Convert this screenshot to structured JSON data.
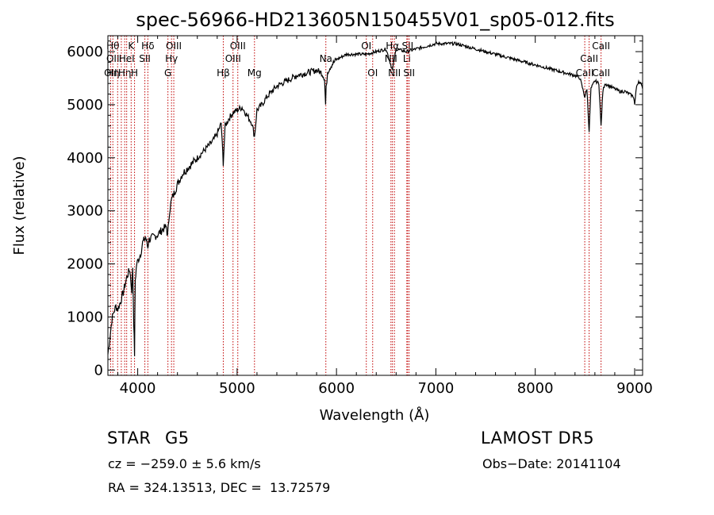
{
  "chart_data": {
    "type": "line",
    "title": "spec-56966-HD213605N150455V01_sp05-012.fits",
    "xlabel": "Wavelength (Å)",
    "ylabel": "Flux (relative)",
    "xlim": [
      3700,
      9080
    ],
    "ylim": [
      -100,
      6300
    ],
    "xticks": [
      4000,
      5000,
      6000,
      7000,
      8000,
      9000
    ],
    "yticks": [
      0,
      1000,
      2000,
      3000,
      4000,
      5000,
      6000
    ],
    "line_color": "#000000",
    "marker_color": "#c00000",
    "series": [
      {
        "x": [
          3700,
          3720,
          3740,
          3760,
          3780,
          3800,
          3830,
          3860,
          3890,
          3920,
          3940,
          3950,
          3960,
          3968,
          3975,
          3990,
          4010,
          4030,
          4050,
          4080,
          4102,
          4110,
          4150,
          4200,
          4250,
          4290,
          4300,
          4320,
          4340,
          4360,
          4400,
          4450,
          4500,
          4550,
          4600,
          4650,
          4700,
          4750,
          4800,
          4840,
          4861,
          4880,
          4920,
          4960,
          5000,
          5050,
          5100,
          5150,
          5175,
          5200,
          5250,
          5300,
          5350,
          5400,
          5500,
          5600,
          5700,
          5800,
          5850,
          5880,
          5890,
          5896,
          5910,
          5950,
          6000,
          6100,
          6200,
          6300,
          6400,
          6500,
          6563,
          6600,
          6700,
          6800,
          6900,
          7000,
          7100,
          7200,
          7300,
          7400,
          7500,
          7600,
          7700,
          7800,
          7900,
          8000,
          8100,
          8200,
          8300,
          8400,
          8450,
          8498,
          8520,
          8542,
          8560,
          8600,
          8640,
          8662,
          8680,
          8700,
          8750,
          8800,
          8850,
          8900,
          8950,
          8990,
          9000,
          9020,
          9040,
          9060,
          9080
        ],
        "y": [
          300,
          600,
          950,
          1100,
          1200,
          1150,
          1300,
          1500,
          1750,
          1900,
          1500,
          1950,
          900,
          300,
          1700,
          2000,
          2100,
          2200,
          2400,
          2500,
          2300,
          2450,
          2500,
          2550,
          2650,
          2700,
          2500,
          3000,
          3200,
          3300,
          3500,
          3700,
          3800,
          3900,
          4000,
          4100,
          4200,
          4300,
          4450,
          4650,
          3900,
          4600,
          4750,
          4850,
          4900,
          4950,
          4800,
          4650,
          4400,
          4900,
          5000,
          5150,
          5250,
          5350,
          5450,
          5550,
          5600,
          5650,
          5600,
          5500,
          5000,
          5300,
          5620,
          5750,
          5850,
          5950,
          5950,
          5950,
          6000,
          6050,
          5650,
          6050,
          6000,
          6050,
          6100,
          6150,
          6150,
          6150,
          6100,
          6050,
          6000,
          5950,
          5900,
          5850,
          5800,
          5750,
          5700,
          5650,
          5600,
          5550,
          5500,
          5150,
          5300,
          4500,
          5300,
          5450,
          5400,
          4600,
          5250,
          5400,
          5350,
          5300,
          5250,
          5250,
          5200,
          5150,
          5000,
          5350,
          5450,
          5400,
          5300
        ]
      }
    ],
    "line_markers": [
      {
        "wavelength": 3727,
        "labels": [
          "OII"
        ],
        "row": [
          3
        ]
      },
      {
        "wavelength": 3750,
        "labels": [
          "Hθ",
          "OII",
          "Hη"
        ],
        "row": [
          1,
          2,
          3
        ]
      },
      {
        "wavelength": 3798,
        "labels": [],
        "row": []
      },
      {
        "wavelength": 3835,
        "labels": [],
        "row": []
      },
      {
        "wavelength": 3869,
        "labels": [
          "Hη"
        ],
        "row": [
          3
        ]
      },
      {
        "wavelength": 3889,
        "labels": [
          "HeI"
        ],
        "row": [
          2
        ]
      },
      {
        "wavelength": 3934,
        "labels": [
          "K"
        ],
        "row": [
          1
        ]
      },
      {
        "wavelength": 3968,
        "labels": [
          "H"
        ],
        "row": [
          3
        ]
      },
      {
        "wavelength": 4072,
        "labels": [
          "SII"
        ],
        "row": [
          2
        ]
      },
      {
        "wavelength": 4102,
        "labels": [
          "Hδ"
        ],
        "row": [
          1
        ]
      },
      {
        "wavelength": 4304,
        "labels": [
          "G"
        ],
        "row": [
          3
        ]
      },
      {
        "wavelength": 4340,
        "labels": [
          "Hγ"
        ],
        "row": [
          2
        ]
      },
      {
        "wavelength": 4363,
        "labels": [
          "OIII"
        ],
        "row": [
          1
        ]
      },
      {
        "wavelength": 4861,
        "labels": [
          "Hβ"
        ],
        "row": [
          3
        ]
      },
      {
        "wavelength": 4959,
        "labels": [
          "OIII"
        ],
        "row": [
          2
        ]
      },
      {
        "wavelength": 5007,
        "labels": [
          "OIII"
        ],
        "row": [
          1
        ]
      },
      {
        "wavelength": 5175,
        "labels": [
          "Mg"
        ],
        "row": [
          3
        ]
      },
      {
        "wavelength": 5893,
        "labels": [
          "Na"
        ],
        "row": [
          2
        ]
      },
      {
        "wavelength": 6300,
        "labels": [
          "OI"
        ],
        "row": [
          1
        ]
      },
      {
        "wavelength": 6364,
        "labels": [
          "OI"
        ],
        "row": [
          3
        ]
      },
      {
        "wavelength": 6548,
        "labels": [
          "NII"
        ],
        "row": [
          2
        ]
      },
      {
        "wavelength": 6563,
        "labels": [
          "Hα"
        ],
        "row": [
          1
        ]
      },
      {
        "wavelength": 6583,
        "labels": [
          "NII"
        ],
        "row": [
          3
        ]
      },
      {
        "wavelength": 6708,
        "labels": [
          "Li"
        ],
        "row": [
          2
        ]
      },
      {
        "wavelength": 6716,
        "labels": [
          "SII"
        ],
        "row": [
          1
        ]
      },
      {
        "wavelength": 6731,
        "labels": [
          "SII"
        ],
        "row": [
          3
        ]
      },
      {
        "wavelength": 8498,
        "labels": [
          "CaII"
        ],
        "row": [
          3
        ]
      },
      {
        "wavelength": 8542,
        "labels": [
          "CaII"
        ],
        "row": [
          2
        ]
      },
      {
        "wavelength": 8662,
        "labels": [
          "CaII",
          "CaII"
        ],
        "row": [
          1,
          3
        ]
      }
    ]
  },
  "info": {
    "object_type": "STAR",
    "subclass": "G5",
    "survey": "LAMOST DR5",
    "cz": "cz = −259.0 ± 5.6 km/s",
    "obs_date": "Obs−Date: 20141104",
    "coords": "RA = 324.13513, DEC =  13.72579"
  }
}
